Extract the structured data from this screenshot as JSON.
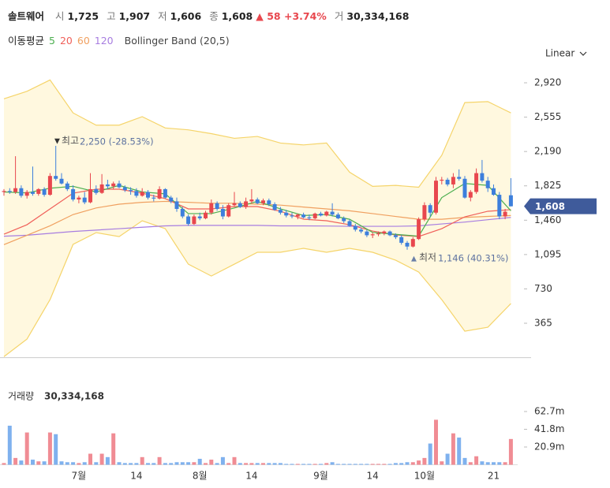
{
  "chart_data": {
    "type": "candlestick",
    "title": "솔트웨어",
    "stats": [
      {
        "label": "시",
        "text": "1,725"
      },
      {
        "label": "고",
        "text": "1,907"
      },
      {
        "label": "저",
        "text": "1,606"
      },
      {
        "label": "종",
        "text": "1,608"
      }
    ],
    "change": "▲ 58 +3.74%",
    "volume_stat": {
      "label": "거",
      "text": "30,334,168"
    },
    "scale_label": "Linear",
    "up_color": "#e8474e",
    "down_color": "#3d7fdc",
    "annotations": [
      {
        "label": "최고",
        "text": "2,250 (-28.53%)"
      },
      {
        "label": "최저",
        "text": "1,146 (40.31%)"
      }
    ],
    "categories": [
      null,
      null,
      null,
      null,
      null,
      null,
      null,
      null,
      null,
      null,
      null,
      null,
      null,
      "7월",
      null,
      null,
      null,
      null,
      null,
      null,
      null,
      null,
      null,
      "14",
      null,
      null,
      null,
      null,
      null,
      null,
      null,
      null,
      null,
      null,
      "8월",
      null,
      null,
      null,
      null,
      null,
      null,
      null,
      null,
      "14",
      null,
      null,
      null,
      null,
      null,
      null,
      null,
      null,
      null,
      null,
      null,
      "9월",
      null,
      null,
      null,
      null,
      null,
      null,
      null,
      null,
      "14",
      null,
      null,
      null,
      null,
      null,
      null,
      null,
      null,
      "10월",
      null,
      null,
      null,
      null,
      null,
      null,
      null,
      null,
      null,
      null,
      null,
      "21",
      null,
      null,
      null
    ],
    "ohlc": [
      [
        1760,
        1790,
        1720,
        1770
      ],
      [
        1770,
        1800,
        1740,
        1760
      ],
      [
        1760,
        2140,
        1740,
        1800
      ],
      [
        1800,
        1830,
        1700,
        1720
      ],
      [
        1720,
        1780,
        1690,
        1760
      ],
      [
        1760,
        2030,
        1720,
        1740
      ],
      [
        1740,
        1800,
        1720,
        1790
      ],
      [
        1790,
        1810,
        1710,
        1730
      ],
      [
        1730,
        1960,
        1720,
        1930
      ],
      [
        1930,
        2250,
        1880,
        1900
      ],
      [
        1900,
        1960,
        1840,
        1850
      ],
      [
        1850,
        1870,
        1770,
        1790
      ],
      [
        1790,
        1830,
        1660,
        1680
      ],
      [
        1680,
        1720,
        1640,
        1700
      ],
      [
        1700,
        1760,
        1630,
        1650
      ],
      [
        1650,
        1960,
        1640,
        1790
      ],
      [
        1790,
        1830,
        1730,
        1750
      ],
      [
        1750,
        1950,
        1740,
        1840
      ],
      [
        1840,
        1890,
        1790,
        1820
      ],
      [
        1820,
        1870,
        1790,
        1850
      ],
      [
        1850,
        1880,
        1800,
        1810
      ],
      [
        1810,
        1830,
        1760,
        1780
      ],
      [
        1780,
        1810,
        1730,
        1770
      ],
      [
        1770,
        1800,
        1700,
        1720
      ],
      [
        1720,
        1800,
        1710,
        1760
      ],
      [
        1760,
        1780,
        1680,
        1700
      ],
      [
        1700,
        1730,
        1660,
        1690
      ],
      [
        1690,
        1820,
        1680,
        1790
      ],
      [
        1790,
        1800,
        1690,
        1700
      ],
      [
        1700,
        1720,
        1640,
        1660
      ],
      [
        1660,
        1700,
        1550,
        1580
      ],
      [
        1580,
        1600,
        1480,
        1500
      ],
      [
        1500,
        1520,
        1400,
        1420
      ],
      [
        1420,
        1520,
        1410,
        1500
      ],
      [
        1500,
        1540,
        1460,
        1480
      ],
      [
        1480,
        1560,
        1470,
        1540
      ],
      [
        1540,
        1680,
        1520,
        1640
      ],
      [
        1640,
        1660,
        1560,
        1580
      ],
      [
        1580,
        1620,
        1470,
        1500
      ],
      [
        1500,
        1640,
        1490,
        1620
      ],
      [
        1620,
        1760,
        1600,
        1640
      ],
      [
        1640,
        1660,
        1590,
        1600
      ],
      [
        1600,
        1700,
        1580,
        1660
      ],
      [
        1660,
        1790,
        1640,
        1680
      ],
      [
        1680,
        1700,
        1630,
        1640
      ],
      [
        1640,
        1690,
        1620,
        1670
      ],
      [
        1670,
        1690,
        1610,
        1630
      ],
      [
        1630,
        1650,
        1560,
        1570
      ],
      [
        1570,
        1600,
        1520,
        1540
      ],
      [
        1540,
        1570,
        1490,
        1510
      ],
      [
        1510,
        1540,
        1480,
        1500
      ],
      [
        1500,
        1530,
        1470,
        1520
      ],
      [
        1520,
        1540,
        1480,
        1490
      ],
      [
        1490,
        1520,
        1460,
        1480
      ],
      [
        1480,
        1540,
        1470,
        1530
      ],
      [
        1530,
        1550,
        1500,
        1510
      ],
      [
        1510,
        1560,
        1500,
        1550
      ],
      [
        1550,
        1640,
        1500,
        1520
      ],
      [
        1520,
        1540,
        1470,
        1480
      ],
      [
        1480,
        1500,
        1430,
        1450
      ],
      [
        1450,
        1470,
        1390,
        1400
      ],
      [
        1400,
        1420,
        1340,
        1360
      ],
      [
        1360,
        1380,
        1320,
        1340
      ],
      [
        1340,
        1360,
        1280,
        1300
      ],
      [
        1300,
        1330,
        1270,
        1310
      ],
      [
        1310,
        1340,
        1290,
        1320
      ],
      [
        1320,
        1350,
        1300,
        1340
      ],
      [
        1340,
        1350,
        1290,
        1300
      ],
      [
        1300,
        1320,
        1260,
        1280
      ],
      [
        1280,
        1300,
        1200,
        1220
      ],
      [
        1220,
        1240,
        1146,
        1180
      ],
      [
        1180,
        1280,
        1170,
        1260
      ],
      [
        1260,
        1490,
        1250,
        1470
      ],
      [
        1470,
        1650,
        1450,
        1620
      ],
      [
        1620,
        1640,
        1500,
        1540
      ],
      [
        1540,
        1920,
        1520,
        1880
      ],
      [
        1880,
        1920,
        1840,
        1890
      ],
      [
        1890,
        1910,
        1820,
        1840
      ],
      [
        1840,
        1960,
        1800,
        1920
      ],
      [
        1920,
        2000,
        1880,
        1900
      ],
      [
        1900,
        1930,
        1690,
        1700
      ],
      [
        1700,
        1780,
        1660,
        1760
      ],
      [
        1760,
        2010,
        1740,
        1960
      ],
      [
        1960,
        2100,
        1860,
        1880
      ],
      [
        1880,
        1920,
        1760,
        1800
      ],
      [
        1800,
        1840,
        1720,
        1730
      ],
      [
        1730,
        1760,
        1470,
        1500
      ],
      [
        1500,
        1580,
        1470,
        1550
      ],
      [
        1725,
        1907,
        1606,
        1608
      ]
    ],
    "ylim": [
      0,
      3050
    ],
    "yticks": [
      {
        "value": 2920,
        "label": "2,920"
      },
      {
        "value": 2555,
        "label": "2,555"
      },
      {
        "value": 2190,
        "label": "2,190"
      },
      {
        "value": 1825,
        "label": "1,825"
      },
      {
        "value": 1460,
        "label": "1,460"
      },
      {
        "value": 1095,
        "label": "1,095"
      },
      730,
      365
    ],
    "moving_averages": {
      "label": "이동평균",
      "series": [
        {
          "name": "5",
          "color": "#4caf50",
          "x": [
            0,
            4,
            8,
            12,
            16,
            20,
            24,
            28,
            32,
            36,
            40,
            44,
            48,
            52,
            56,
            60,
            64,
            68,
            72,
            76,
            80,
            84,
            88
          ],
          "values": [
            1760,
            1750,
            1800,
            1820,
            1760,
            1830,
            1760,
            1740,
            1530,
            1530,
            1590,
            1660,
            1580,
            1510,
            1520,
            1470,
            1330,
            1310,
            1290,
            1700,
            1850,
            1830,
            1560
          ]
        },
        {
          "name": "20",
          "color": "#f0605a",
          "x": [
            0,
            4,
            8,
            12,
            16,
            20,
            24,
            28,
            32,
            36,
            40,
            44,
            48,
            52,
            56,
            60,
            64,
            68,
            72,
            76,
            80,
            84,
            88
          ],
          "values": [
            1311,
            1412,
            1580,
            1747,
            1789,
            1789,
            1747,
            1689,
            1580,
            1580,
            1605,
            1605,
            1555,
            1471,
            1454,
            1412,
            1345,
            1303,
            1287,
            1370,
            1496,
            1555,
            1572
          ]
        },
        {
          "name": "60",
          "color": "#f0a060",
          "x": [
            0,
            4,
            8,
            12,
            16,
            20,
            24,
            28,
            32,
            36,
            40,
            44,
            48,
            52,
            56,
            60,
            64,
            68,
            72,
            76,
            80,
            84,
            88
          ],
          "values": [
            1200,
            1300,
            1400,
            1520,
            1590,
            1630,
            1650,
            1660,
            1650,
            1640,
            1640,
            1630,
            1620,
            1600,
            1580,
            1560,
            1530,
            1500,
            1470,
            1470,
            1490,
            1500,
            1510
          ]
        },
        {
          "name": "120",
          "color": "#a77de0",
          "x": [
            0,
            4,
            8,
            12,
            16,
            20,
            24,
            28,
            32,
            36,
            40,
            44,
            48,
            52,
            56,
            60,
            64,
            68,
            72,
            76,
            80,
            84,
            88
          ],
          "values": [
            1290,
            1300,
            1320,
            1340,
            1355,
            1370,
            1385,
            1400,
            1405,
            1405,
            1405,
            1405,
            1400,
            1400,
            1398,
            1395,
            1395,
            1395,
            1400,
            1420,
            1440,
            1465,
            1490
          ]
        }
      ]
    },
    "bollinger": {
      "name": "Bollinger Band (20,5)",
      "color": "#f5d46a",
      "fill": "#fff8df",
      "x": [
        0,
        4,
        8,
        12,
        16,
        20,
        24,
        28,
        32,
        36,
        40,
        44,
        48,
        52,
        56,
        60,
        64,
        68,
        72,
        76,
        80,
        84,
        88
      ],
      "upper": [
        2750,
        2830,
        2950,
        2600,
        2470,
        2470,
        2560,
        2440,
        2420,
        2380,
        2330,
        2350,
        2280,
        2260,
        2280,
        1970,
        1820,
        1830,
        1810,
        2150,
        2710,
        2720,
        2600
      ],
      "lower": [
        10,
        197,
        616,
        1203,
        1328,
        1286,
        1454,
        1370,
        993,
        867,
        993,
        1119,
        1119,
        1161,
        1119,
        1161,
        1119,
        1035,
        909,
        616,
        281,
        323,
        574
      ]
    },
    "volume": {
      "label": "거래량",
      "total": "30,334,168",
      "up_color": "#f08c94",
      "down_color": "#7fb1ee",
      "values": [
        2,
        46,
        8,
        5,
        38,
        6,
        4,
        4,
        38,
        36,
        4,
        3,
        3,
        2,
        3,
        13,
        3,
        13,
        9,
        37,
        3,
        2,
        2,
        2,
        9,
        2,
        2,
        9,
        2,
        2,
        3,
        3,
        3,
        3,
        7,
        2,
        6,
        2,
        9,
        2,
        9,
        2,
        2,
        2,
        2,
        2,
        2,
        2,
        2,
        1,
        1,
        1,
        1,
        1,
        1,
        1,
        2,
        3,
        1,
        1,
        1,
        1,
        1,
        1,
        1,
        1,
        1,
        1,
        2,
        2,
        3,
        3,
        5,
        8,
        25,
        53,
        4,
        13,
        37,
        32,
        8,
        3,
        10,
        4,
        3,
        3,
        3,
        3,
        30.334168
      ],
      "ylim": [
        0,
        92.4
      ],
      "yticks": [
        {
          "value": 62.7,
          "label": "62.7m"
        },
        {
          "value": 41.8,
          "label": "41.8m"
        },
        {
          "value": 20.9,
          "label": "20.9m"
        }
      ]
    }
  }
}
